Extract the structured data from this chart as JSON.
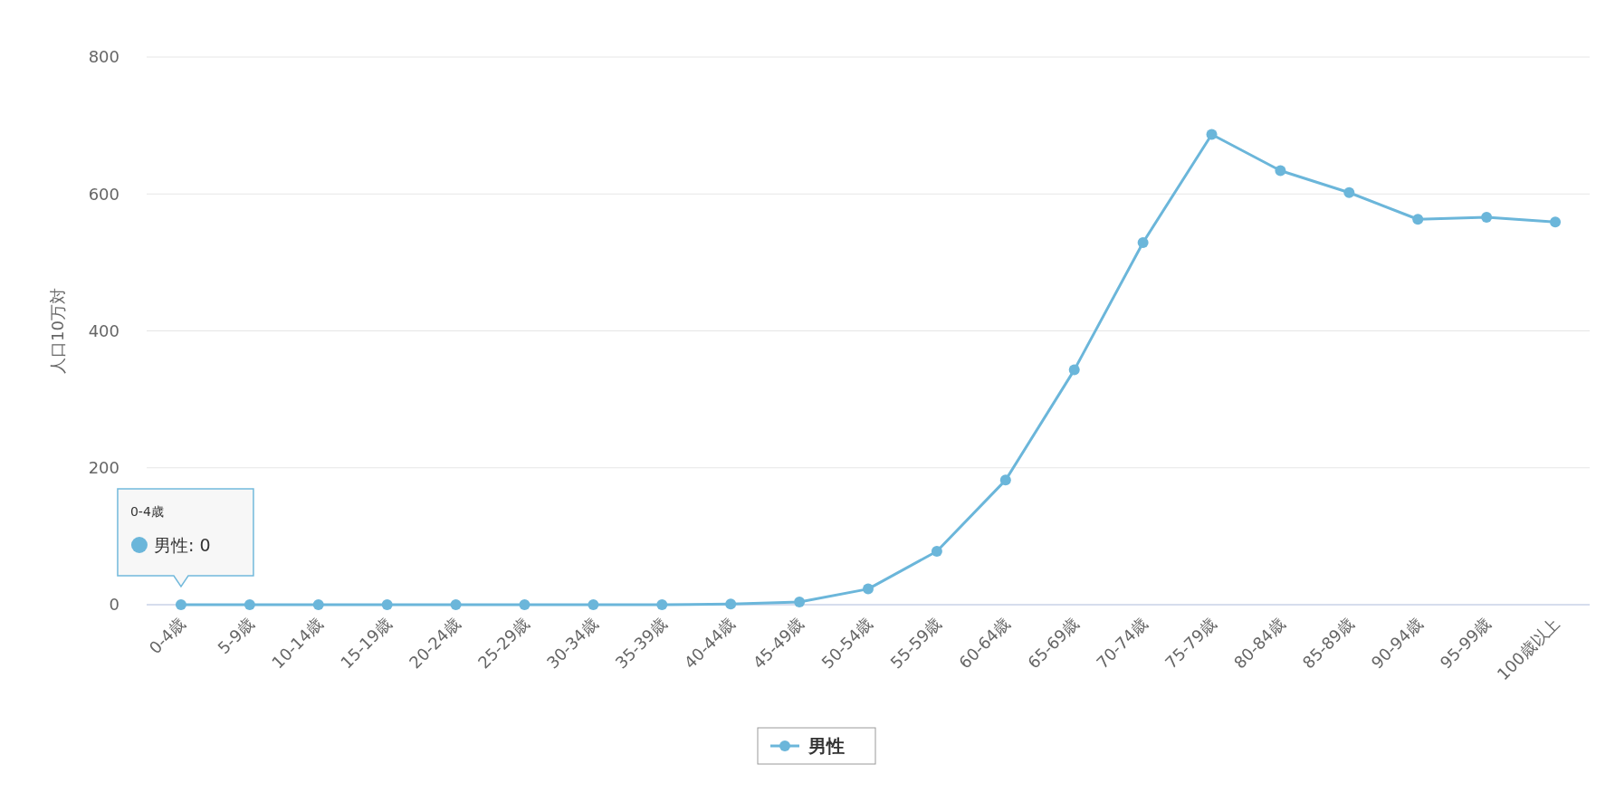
{
  "chart_data": {
    "type": "line",
    "ylabel": "人口10万対",
    "categories": [
      "0-4歳",
      "5-9歳",
      "10-14歳",
      "15-19歳",
      "20-24歳",
      "25-29歳",
      "30-34歳",
      "35-39歳",
      "40-44歳",
      "45-49歳",
      "50-54歳",
      "55-59歳",
      "60-64歳",
      "65-69歳",
      "70-74歳",
      "75-79歳",
      "80-84歳",
      "85-89歳",
      "90-94歳",
      "95-99歳",
      "100歳以上"
    ],
    "series": [
      {
        "name": "男性",
        "color": "#6bb6da",
        "values": [
          0,
          0,
          0,
          0,
          0,
          0,
          0,
          0,
          1,
          4,
          23,
          78,
          182,
          343,
          529,
          687,
          634,
          602,
          563,
          566,
          559
        ]
      }
    ],
    "ylim": [
      0,
      800
    ],
    "yticks": [
      0,
      200,
      400,
      600,
      800
    ],
    "grid": "y",
    "legend": "bottom",
    "marker": "circle",
    "line_style": "solid",
    "annotations": [
      "0-4歳",
      {
        "text": "男性: 0",
        "x": "0-4歳",
        "y": 0
      }
    ]
  }
}
